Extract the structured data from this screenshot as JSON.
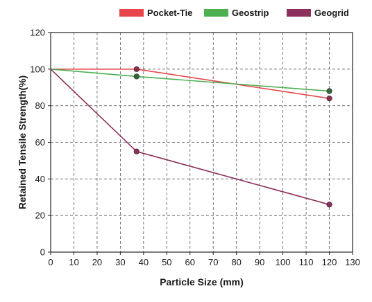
{
  "chart_data": {
    "type": "line",
    "title": "",
    "xlabel": "Particle Size (mm)",
    "ylabel": "Retained Tensile Strength(%)",
    "xlim": [
      0,
      130
    ],
    "ylim": [
      0,
      120
    ],
    "x_ticks": [
      0,
      10,
      20,
      30,
      40,
      50,
      60,
      70,
      80,
      90,
      100,
      110,
      120,
      130
    ],
    "y_ticks": [
      0,
      20,
      40,
      60,
      80,
      100,
      120
    ],
    "grid": "dashed",
    "legend_position": "top",
    "series": [
      {
        "name": "Pocket-Tie",
        "color": "#e8454a",
        "marker_color": "#8b2f4a",
        "x": [
          0,
          37,
          120
        ],
        "y": [
          100,
          100,
          84
        ]
      },
      {
        "name": "Geostrip",
        "color": "#4caf50",
        "marker_color": "#2e6b36",
        "x": [
          0,
          37,
          120
        ],
        "y": [
          100,
          96,
          88
        ]
      },
      {
        "name": "Geogrid",
        "color": "#8b2f5c",
        "marker_color": "#8b2f5c",
        "x": [
          0,
          37,
          120
        ],
        "y": [
          100,
          55,
          26
        ]
      }
    ]
  }
}
